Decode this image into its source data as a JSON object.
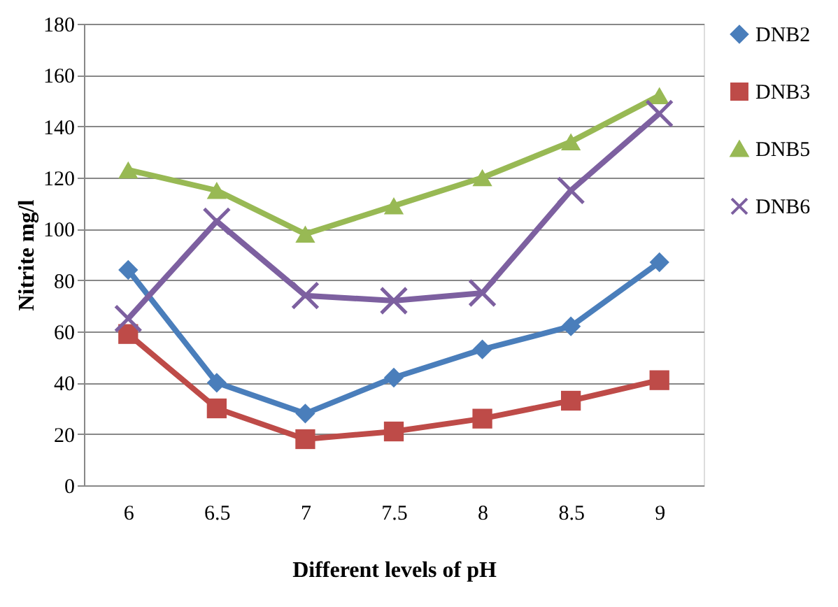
{
  "chart_data": {
    "type": "line",
    "xlabel": "Different levels of pH",
    "ylabel": "Nitrite mg/l",
    "categories": [
      "6",
      "6.5",
      "7",
      "7.5",
      "8",
      "8.5",
      "9"
    ],
    "series": [
      {
        "name": "DNB2",
        "color": "#4a7ebb",
        "marker": "diamond",
        "values": [
          84,
          40,
          28,
          42,
          53,
          62,
          87
        ]
      },
      {
        "name": "DNB3",
        "color": "#be4b48",
        "marker": "square",
        "values": [
          59,
          30,
          18,
          21,
          26,
          33,
          41
        ]
      },
      {
        "name": "DNB5",
        "color": "#98b954",
        "marker": "triangle",
        "values": [
          123,
          115,
          98,
          109,
          120,
          134,
          152
        ]
      },
      {
        "name": "DNB6",
        "color": "#7d60a0",
        "marker": "cross",
        "values": [
          65,
          103,
          74,
          72,
          75,
          115,
          145
        ]
      }
    ],
    "ylim": [
      0,
      180
    ],
    "yticks": [
      0,
      20,
      40,
      60,
      80,
      100,
      120,
      140,
      160,
      180
    ],
    "grid": "y",
    "legend": "right"
  }
}
